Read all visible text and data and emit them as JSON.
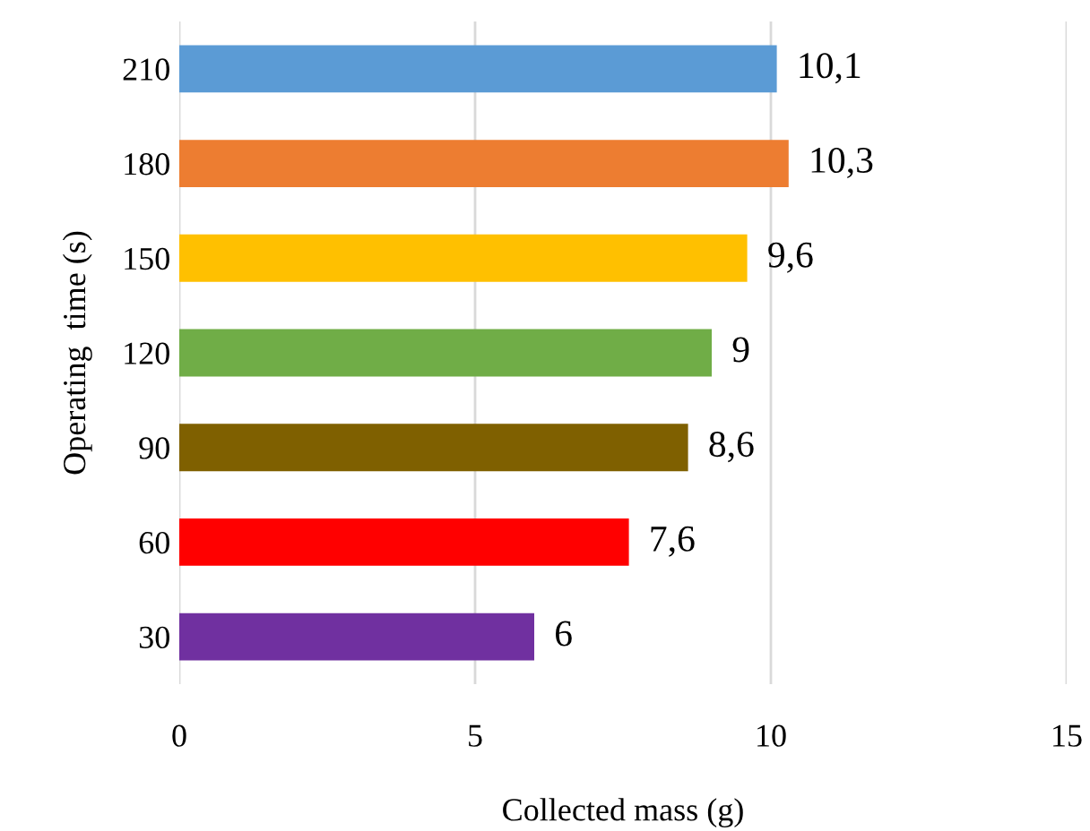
{
  "chart_data": {
    "type": "bar",
    "orientation": "horizontal",
    "xlabel": "Collected mass (g)",
    "ylabel": "Operating  time (s)",
    "categories": [
      "210",
      "180",
      "150",
      "120",
      "90",
      "60",
      "30"
    ],
    "values": [
      10.1,
      10.3,
      9.6,
      9,
      8.6,
      7.6,
      6
    ],
    "colors": [
      "#5b9bd5",
      "#ed7d31",
      "#ffc000",
      "#70ad47",
      "#7f6000",
      "#ff0000",
      "#7030a0"
    ],
    "value_labels": [
      "10,1",
      "10,3",
      "9,6",
      "9",
      "8,6",
      "7,6",
      "6"
    ],
    "xlim": [
      0,
      15
    ],
    "xticks": [
      0,
      5,
      10,
      15
    ],
    "grid": "x"
  }
}
